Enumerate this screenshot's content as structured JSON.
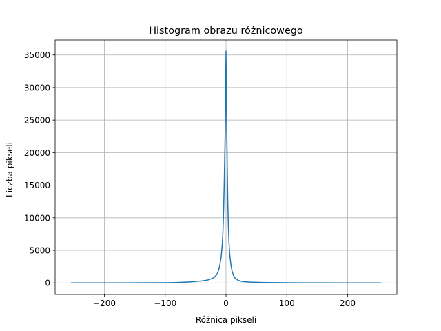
{
  "chart_data": {
    "type": "line",
    "title": "Histogram obrazu różnicowego",
    "xlabel": "Różnica pikseli",
    "ylabel": "Liczba pikseli",
    "xlim": [
      -281,
      281
    ],
    "ylim": [
      -1775,
      37300
    ],
    "xticks": [
      -200,
      -100,
      0,
      100,
      200
    ],
    "xtick_labels": [
      "−200",
      "−100",
      "0",
      "100",
      "200"
    ],
    "yticks": [
      0,
      5000,
      10000,
      15000,
      20000,
      25000,
      30000,
      35000
    ],
    "ytick_labels": [
      "0",
      "5000",
      "10000",
      "15000",
      "20000",
      "25000",
      "30000",
      "35000"
    ],
    "grid": true,
    "series": [
      {
        "color": "#1f77b4",
        "x": [
          -255,
          -200,
          -150,
          -120,
          -100,
          -90,
          -80,
          -70,
          -60,
          -50,
          -40,
          -35,
          -30,
          -25,
          -20,
          -15,
          -12,
          -10,
          -8,
          -6,
          -5,
          -4,
          -3,
          -2,
          -1,
          0,
          1,
          2,
          3,
          4,
          5,
          6,
          8,
          10,
          12,
          15,
          20,
          25,
          30,
          40,
          50,
          60,
          80,
          100,
          120,
          150,
          200,
          255
        ],
        "y": [
          0,
          5,
          10,
          20,
          30,
          40,
          60,
          100,
          150,
          220,
          300,
          370,
          450,
          600,
          800,
          1300,
          2000,
          2800,
          4000,
          6000,
          8000,
          11000,
          15000,
          20000,
          25000,
          35600,
          26000,
          18000,
          12000,
          8500,
          6000,
          4500,
          2800,
          1800,
          1200,
          700,
          400,
          250,
          180,
          120,
          90,
          60,
          40,
          25,
          15,
          8,
          4,
          0
        ]
      }
    ]
  }
}
